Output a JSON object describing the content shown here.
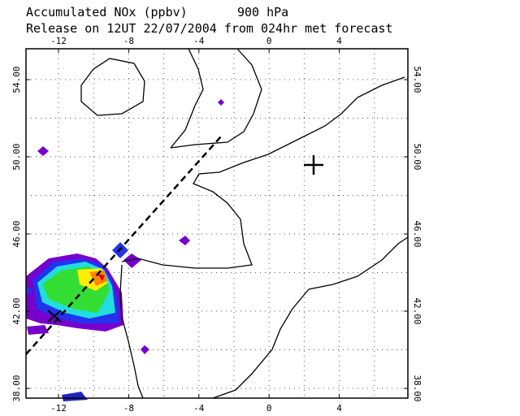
{
  "map": {
    "title": "Accumulated NOx  (ppbv)",
    "level": "900 hPa",
    "subtitle": "Release on 12UT 22/07/2004 from 024hr met forecast",
    "lon_labels": [
      "-12",
      "-8",
      "-4",
      "0",
      "4"
    ],
    "lat_labels": [
      "54.00",
      "50.00",
      "46.00",
      "42.00",
      "38.00"
    ]
  }
}
